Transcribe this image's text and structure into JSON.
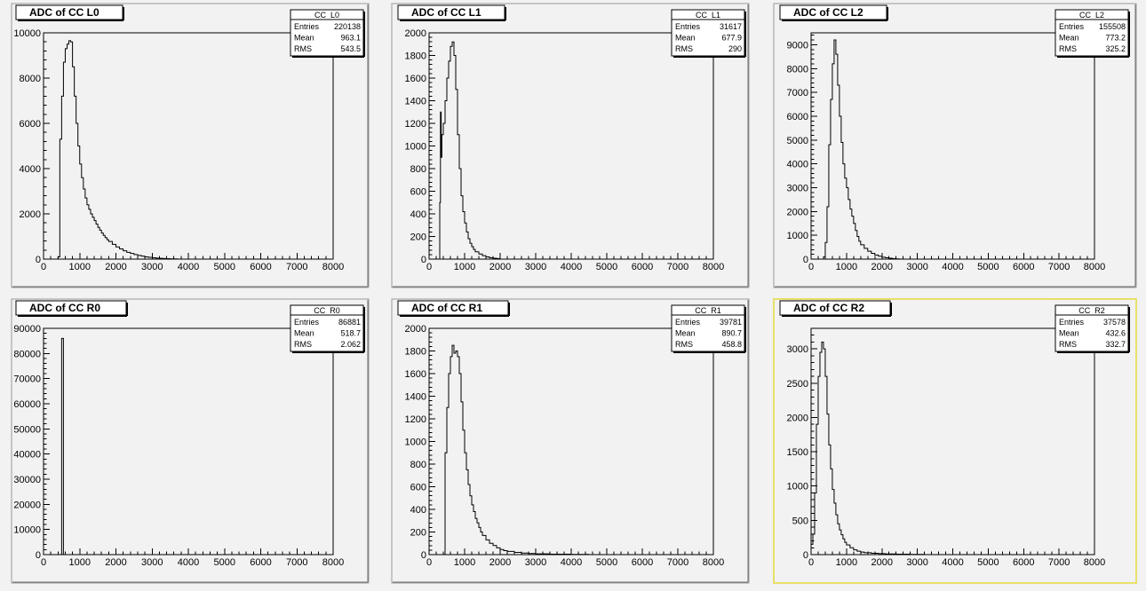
{
  "canvas": {
    "background": "#f2f2f2",
    "pad_border": "#9a9a9a",
    "active_pad_border": "#e8e06a"
  },
  "chart_data": [
    {
      "type": "histogram",
      "name": "CC_L0",
      "title": "ADC of CC L0",
      "xlim": [
        0,
        8000
      ],
      "ylim": [
        0,
        10000
      ],
      "x_ticks": [
        0,
        1000,
        2000,
        3000,
        4000,
        5000,
        6000,
        7000,
        8000
      ],
      "y_ticks": [
        0,
        2000,
        4000,
        6000,
        8000,
        10000
      ],
      "stats": [
        [
          "Entries",
          "220138"
        ],
        [
          "Mean",
          "963.1"
        ],
        [
          "RMS",
          "543.5"
        ]
      ],
      "bins": [
        [
          400,
          100
        ],
        [
          450,
          5300
        ],
        [
          500,
          7200
        ],
        [
          550,
          8700
        ],
        [
          600,
          9300
        ],
        [
          650,
          9500
        ],
        [
          700,
          9650
        ],
        [
          750,
          9600
        ],
        [
          800,
          8500
        ],
        [
          850,
          7200
        ],
        [
          900,
          6000
        ],
        [
          950,
          5000
        ],
        [
          1000,
          4200
        ],
        [
          1050,
          3600
        ],
        [
          1100,
          3100
        ],
        [
          1150,
          2700
        ],
        [
          1200,
          2400
        ],
        [
          1250,
          2200
        ],
        [
          1300,
          2000
        ],
        [
          1350,
          1850
        ],
        [
          1400,
          1700
        ],
        [
          1450,
          1550
        ],
        [
          1500,
          1400
        ],
        [
          1550,
          1280
        ],
        [
          1600,
          1150
        ],
        [
          1650,
          1050
        ],
        [
          1700,
          950
        ],
        [
          1750,
          860
        ],
        [
          1800,
          780
        ],
        [
          1900,
          650
        ],
        [
          2000,
          540
        ],
        [
          2100,
          450
        ],
        [
          2200,
          370
        ],
        [
          2300,
          300
        ],
        [
          2400,
          250
        ],
        [
          2500,
          200
        ],
        [
          2600,
          160
        ],
        [
          2700,
          130
        ],
        [
          2800,
          100
        ],
        [
          2900,
          80
        ],
        [
          3000,
          60
        ],
        [
          3100,
          45
        ],
        [
          3200,
          35
        ],
        [
          3300,
          25
        ],
        [
          3400,
          18
        ],
        [
          3500,
          12
        ],
        [
          3600,
          8
        ],
        [
          3700,
          0
        ]
      ]
    },
    {
      "type": "histogram",
      "name": "CC_L1",
      "title": "ADC of CC L1",
      "xlim": [
        0,
        8000
      ],
      "ylim": [
        0,
        2000
      ],
      "x_ticks": [
        0,
        1000,
        2000,
        3000,
        4000,
        5000,
        6000,
        7000,
        8000
      ],
      "y_ticks": [
        0,
        200,
        400,
        600,
        800,
        1000,
        1200,
        1400,
        1600,
        1800,
        2000
      ],
      "stats": [
        [
          "Entries",
          "31617"
        ],
        [
          "Mean",
          "677.9"
        ],
        [
          "RMS",
          "290"
        ]
      ],
      "bins": [
        [
          300,
          500
        ],
        [
          320,
          1300
        ],
        [
          340,
          900
        ],
        [
          360,
          1100
        ],
        [
          400,
          1200
        ],
        [
          450,
          1400
        ],
        [
          500,
          1600
        ],
        [
          550,
          1750
        ],
        [
          600,
          1880
        ],
        [
          650,
          1920
        ],
        [
          700,
          1800
        ],
        [
          750,
          1500
        ],
        [
          800,
          1100
        ],
        [
          850,
          800
        ],
        [
          900,
          560
        ],
        [
          950,
          420
        ],
        [
          1000,
          320
        ],
        [
          1050,
          240
        ],
        [
          1100,
          180
        ],
        [
          1150,
          140
        ],
        [
          1200,
          110
        ],
        [
          1250,
          85
        ],
        [
          1300,
          65
        ],
        [
          1400,
          45
        ],
        [
          1500,
          30
        ],
        [
          1600,
          20
        ],
        [
          1700,
          12
        ],
        [
          1800,
          8
        ],
        [
          1900,
          5
        ],
        [
          2000,
          0
        ]
      ]
    },
    {
      "type": "histogram",
      "name": "CC_L2",
      "title": "ADC of CC L2",
      "xlim": [
        0,
        8000
      ],
      "ylim": [
        0,
        9500
      ],
      "x_ticks": [
        0,
        1000,
        2000,
        3000,
        4000,
        5000,
        6000,
        7000,
        8000
      ],
      "y_ticks": [
        0,
        1000,
        2000,
        3000,
        4000,
        5000,
        6000,
        7000,
        8000,
        9000
      ],
      "stats": [
        [
          "Entries",
          "155508"
        ],
        [
          "Mean",
          "773.2"
        ],
        [
          "RMS",
          "325.2"
        ]
      ],
      "bins": [
        [
          350,
          100
        ],
        [
          400,
          700
        ],
        [
          450,
          2200
        ],
        [
          500,
          4800
        ],
        [
          550,
          6700
        ],
        [
          600,
          8200
        ],
        [
          650,
          9200
        ],
        [
          700,
          8600
        ],
        [
          750,
          7300
        ],
        [
          800,
          6000
        ],
        [
          850,
          4900
        ],
        [
          900,
          4000
        ],
        [
          950,
          3400
        ],
        [
          1000,
          3000
        ],
        [
          1050,
          2500
        ],
        [
          1100,
          2100
        ],
        [
          1150,
          1800
        ],
        [
          1200,
          1500
        ],
        [
          1250,
          1200
        ],
        [
          1300,
          950
        ],
        [
          1350,
          750
        ],
        [
          1400,
          600
        ],
        [
          1500,
          450
        ],
        [
          1600,
          330
        ],
        [
          1700,
          240
        ],
        [
          1800,
          170
        ],
        [
          1900,
          120
        ],
        [
          2000,
          80
        ],
        [
          2100,
          55
        ],
        [
          2200,
          35
        ],
        [
          2300,
          20
        ],
        [
          2400,
          10
        ],
        [
          2500,
          0
        ]
      ]
    },
    {
      "type": "histogram",
      "name": "CC_R0",
      "title": "ADC of CC R0",
      "xlim": [
        0,
        8000
      ],
      "ylim": [
        0,
        90000
      ],
      "x_ticks": [
        0,
        1000,
        2000,
        3000,
        4000,
        5000,
        6000,
        7000,
        8000
      ],
      "y_ticks": [
        0,
        10000,
        20000,
        30000,
        40000,
        50000,
        60000,
        70000,
        80000,
        90000
      ],
      "stats": [
        [
          "Entries",
          "86881"
        ],
        [
          "Mean",
          "518.7"
        ],
        [
          "RMS",
          "2.062"
        ]
      ],
      "bins": [
        [
          500,
          86000
        ],
        [
          550,
          0
        ]
      ]
    },
    {
      "type": "histogram",
      "name": "CC_R1",
      "title": "ADC of CC R1",
      "xlim": [
        0,
        8000
      ],
      "ylim": [
        0,
        2000
      ],
      "x_ticks": [
        0,
        1000,
        2000,
        3000,
        4000,
        5000,
        6000,
        7000,
        8000
      ],
      "y_ticks": [
        0,
        200,
        400,
        600,
        800,
        1000,
        1200,
        1400,
        1600,
        1800,
        2000
      ],
      "stats": [
        [
          "Entries",
          "39781"
        ],
        [
          "Mean",
          "890.7"
        ],
        [
          "RMS",
          "458.8"
        ]
      ],
      "bins": [
        [
          400,
          0
        ],
        [
          450,
          900
        ],
        [
          500,
          1300
        ],
        [
          550,
          1600
        ],
        [
          600,
          1750
        ],
        [
          650,
          1850
        ],
        [
          700,
          1780
        ],
        [
          750,
          1800
        ],
        [
          800,
          1750
        ],
        [
          850,
          1600
        ],
        [
          900,
          1350
        ],
        [
          950,
          1100
        ],
        [
          1000,
          900
        ],
        [
          1050,
          750
        ],
        [
          1100,
          620
        ],
        [
          1150,
          520
        ],
        [
          1200,
          440
        ],
        [
          1250,
          380
        ],
        [
          1300,
          320
        ],
        [
          1350,
          280
        ],
        [
          1400,
          240
        ],
        [
          1450,
          200
        ],
        [
          1500,
          170
        ],
        [
          1600,
          130
        ],
        [
          1700,
          100
        ],
        [
          1800,
          80
        ],
        [
          1900,
          60
        ],
        [
          2000,
          45
        ],
        [
          2100,
          35
        ],
        [
          2200,
          28
        ],
        [
          2400,
          20
        ],
        [
          2600,
          14
        ],
        [
          2800,
          10
        ],
        [
          3000,
          7
        ],
        [
          3400,
          4
        ],
        [
          4000,
          2
        ],
        [
          4500,
          0
        ]
      ]
    },
    {
      "type": "histogram",
      "name": "CC_R2",
      "title": "ADC of CC R2",
      "xlim": [
        0,
        8000
      ],
      "ylim": [
        0,
        3300
      ],
      "x_ticks": [
        0,
        1000,
        2000,
        3000,
        4000,
        5000,
        6000,
        7000,
        8000
      ],
      "y_ticks": [
        0,
        500,
        1000,
        1500,
        2000,
        2500,
        3000
      ],
      "stats": [
        [
          "Entries",
          "37578"
        ],
        [
          "Mean",
          "432.6"
        ],
        [
          "RMS",
          "332.7"
        ]
      ],
      "bins": [
        [
          0,
          150
        ],
        [
          50,
          300
        ],
        [
          100,
          900
        ],
        [
          150,
          1900
        ],
        [
          200,
          2600
        ],
        [
          250,
          2950
        ],
        [
          300,
          3100
        ],
        [
          350,
          3000
        ],
        [
          400,
          2600
        ],
        [
          450,
          2050
        ],
        [
          500,
          1600
        ],
        [
          550,
          1250
        ],
        [
          600,
          950
        ],
        [
          650,
          750
        ],
        [
          700,
          580
        ],
        [
          750,
          450
        ],
        [
          800,
          360
        ],
        [
          850,
          290
        ],
        [
          900,
          230
        ],
        [
          950,
          180
        ],
        [
          1000,
          140
        ],
        [
          1100,
          100
        ],
        [
          1200,
          70
        ],
        [
          1300,
          50
        ],
        [
          1400,
          38
        ],
        [
          1500,
          28
        ],
        [
          1700,
          20
        ],
        [
          1900,
          14
        ],
        [
          2100,
          10
        ],
        [
          2400,
          6
        ],
        [
          2800,
          3
        ],
        [
          3200,
          0
        ]
      ]
    }
  ]
}
